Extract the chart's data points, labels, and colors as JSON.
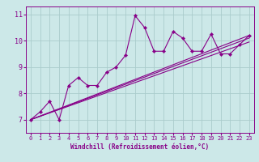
{
  "bg_color": "#cce8e8",
  "line_color": "#880088",
  "grid_color": "#aacccc",
  "xlabel": "Windchill (Refroidissement éolien,°C)",
  "xlim": [
    -0.5,
    23.5
  ],
  "ylim": [
    6.5,
    11.3
  ],
  "yticks": [
    7,
    8,
    9,
    10,
    11
  ],
  "xticks": [
    0,
    1,
    2,
    3,
    4,
    5,
    6,
    7,
    8,
    9,
    10,
    11,
    12,
    13,
    14,
    15,
    16,
    17,
    18,
    19,
    20,
    21,
    22,
    23
  ],
  "line1_x": [
    0,
    1,
    2,
    3,
    4,
    5,
    6,
    7,
    8,
    9,
    10,
    11,
    12,
    13,
    14,
    15,
    16,
    17,
    18,
    19,
    20,
    21,
    22,
    23
  ],
  "line1_y": [
    7.0,
    7.3,
    7.7,
    7.0,
    8.3,
    8.6,
    8.3,
    8.3,
    8.8,
    9.0,
    9.45,
    10.95,
    10.5,
    9.6,
    9.6,
    10.35,
    10.1,
    9.6,
    9.6,
    10.25,
    9.5,
    9.5,
    9.85,
    10.2
  ],
  "line2_x": [
    0,
    23
  ],
  "line2_y": [
    7.0,
    10.2
  ],
  "line3_x": [
    0,
    23
  ],
  "line3_y": [
    7.0,
    10.1
  ],
  "line4_x": [
    0,
    23
  ],
  "line4_y": [
    7.0,
    9.95
  ]
}
